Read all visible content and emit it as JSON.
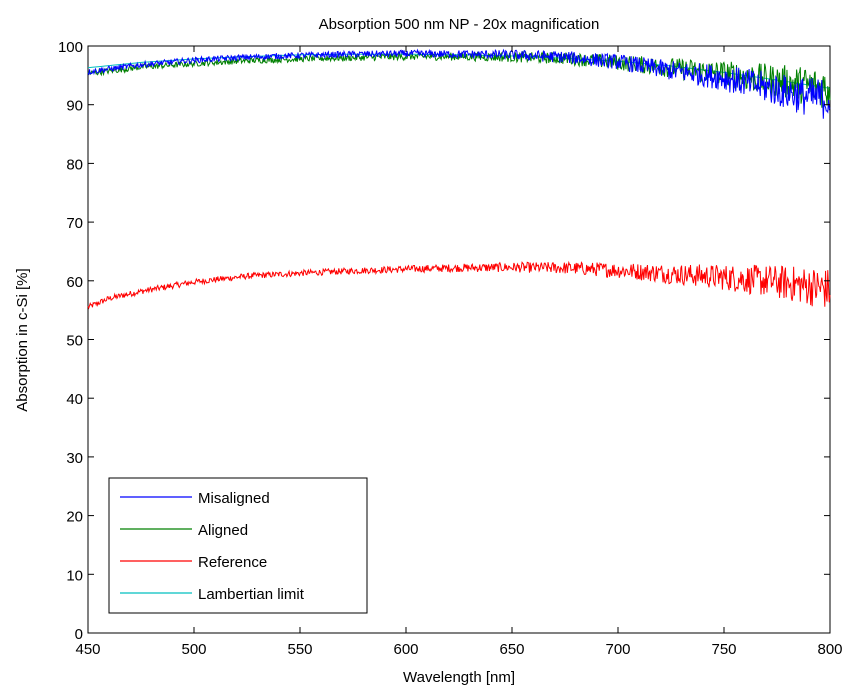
{
  "chart_data": {
    "type": "line",
    "title": "Absorption 500 nm NP - 20x magnification",
    "xlabel": "Wavelength [nm]",
    "ylabel": "Absorption in c-Si [%]",
    "xlim": [
      450,
      800
    ],
    "ylim": [
      0,
      100
    ],
    "xticks": [
      450,
      500,
      550,
      600,
      650,
      700,
      750,
      800
    ],
    "yticks": [
      0,
      10,
      20,
      30,
      40,
      50,
      60,
      70,
      80,
      90,
      100
    ],
    "grid": false,
    "legend_position": "bottom-left",
    "series": [
      {
        "name": "Misaligned",
        "color": "#0000ff",
        "noisy": true,
        "x": [
          450,
          475,
          500,
          525,
          550,
          575,
          600,
          625,
          650,
          675,
          700,
          725,
          750,
          775,
          790,
          800
        ],
        "y": [
          95.6,
          96.8,
          97.6,
          98.1,
          98.4,
          98.6,
          98.7,
          98.6,
          98.5,
          98.1,
          97.3,
          95.8,
          94.6,
          92.5,
          91.3,
          91.0
        ]
      },
      {
        "name": "Aligned",
        "color": "#008000",
        "noisy": true,
        "x": [
          450,
          475,
          500,
          525,
          550,
          575,
          600,
          625,
          650,
          675,
          700,
          725,
          750,
          775,
          790,
          800
        ],
        "y": [
          95.3,
          96.4,
          97.0,
          97.5,
          97.8,
          98.0,
          98.2,
          98.2,
          98.1,
          97.9,
          97.2,
          96.3,
          95.3,
          94.0,
          93.2,
          92.8
        ]
      },
      {
        "name": "Reference",
        "color": "#ff0000",
        "noisy": true,
        "x": [
          450,
          460,
          475,
          500,
          525,
          550,
          575,
          600,
          625,
          650,
          675,
          700,
          725,
          750,
          775,
          790,
          800
        ],
        "y": [
          55.5,
          57.0,
          58.2,
          59.8,
          60.8,
          61.3,
          61.7,
          62.0,
          62.2,
          62.3,
          62.2,
          61.8,
          61.2,
          60.6,
          59.8,
          59.1,
          58.5
        ]
      },
      {
        "name": "Lambertian limit",
        "color": "#00bfbf",
        "noisy": false,
        "x": [
          450,
          475,
          500,
          525,
          550,
          575,
          600,
          625,
          650,
          675,
          700,
          725,
          750,
          775,
          800
        ],
        "y": [
          96.3,
          97.2,
          97.8,
          98.2,
          98.5,
          98.6,
          98.6,
          98.5,
          98.3,
          97.9,
          97.4,
          96.6,
          95.5,
          94.2,
          92.8
        ]
      }
    ]
  }
}
